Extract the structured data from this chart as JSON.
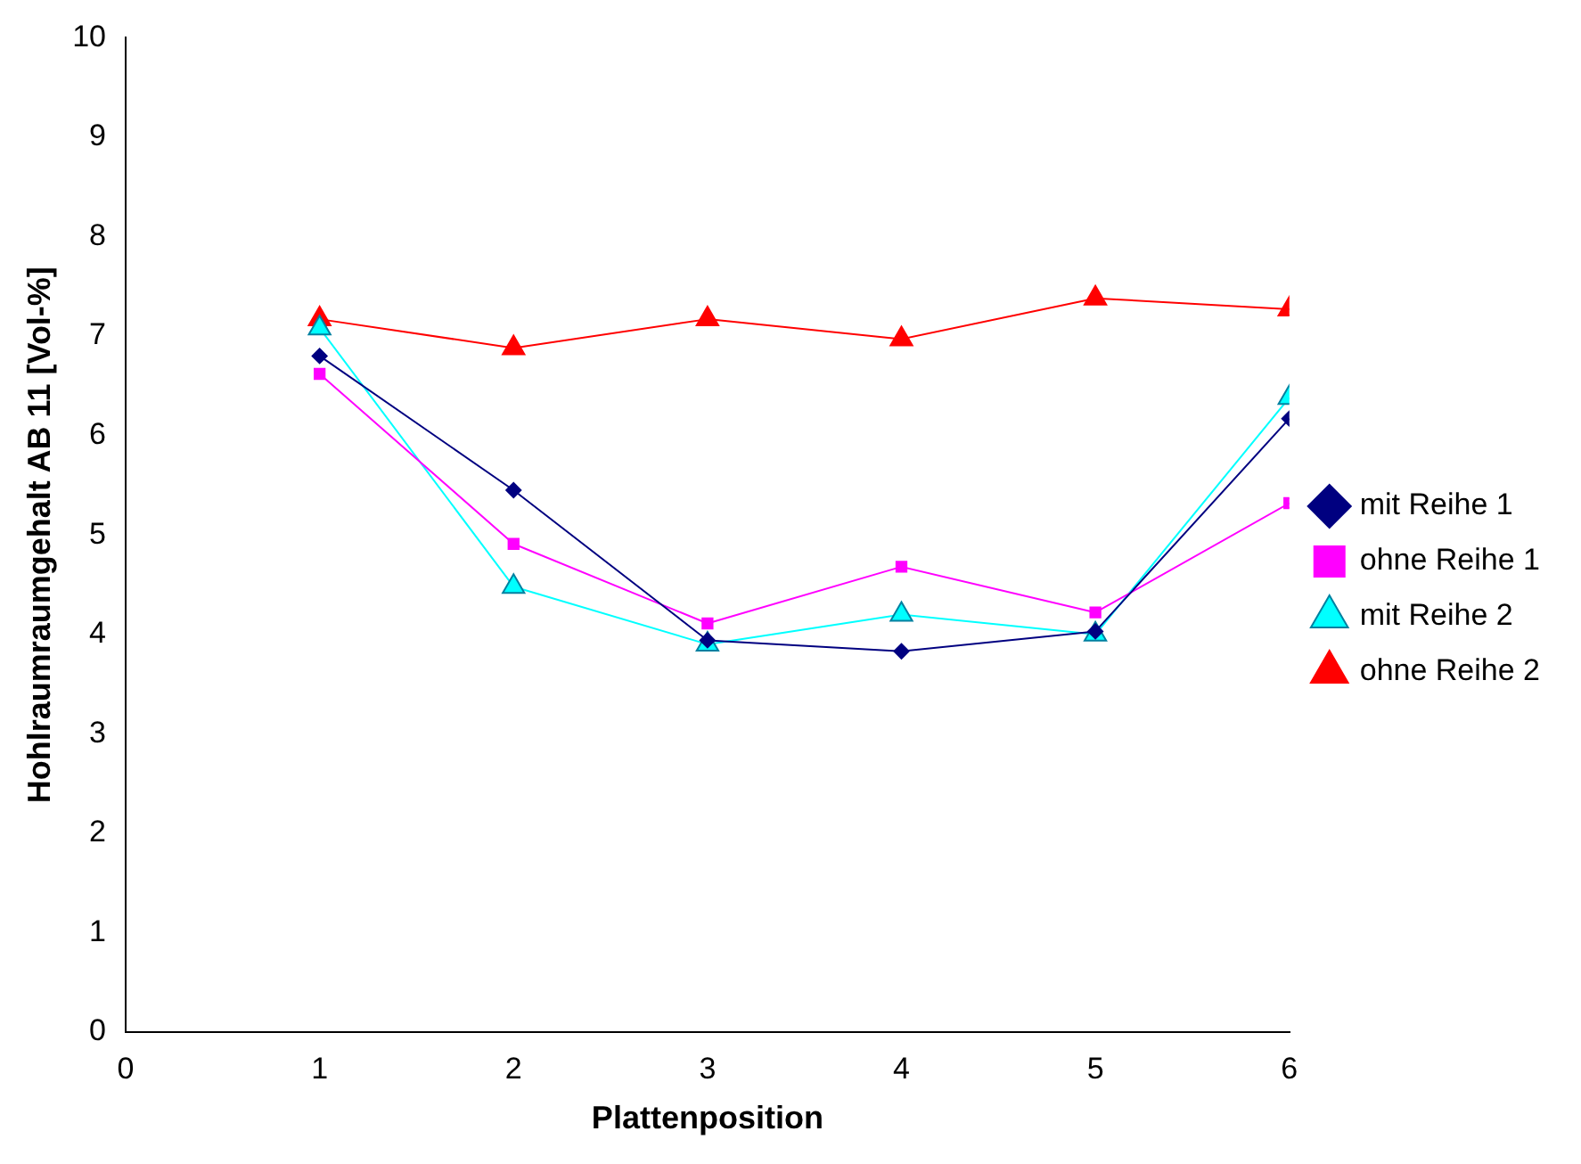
{
  "chart_data": {
    "type": "line",
    "xlabel": "Plattenposition",
    "ylabel": "Hohlraumraumgehalt AB 11 [Vol-%]",
    "x": [
      1,
      2,
      3,
      4,
      5,
      6
    ],
    "xlim": [
      0,
      6
    ],
    "xticks": [
      0,
      1,
      2,
      3,
      4,
      5,
      6
    ],
    "ylim": [
      0,
      10
    ],
    "yticks": [
      0,
      1,
      2,
      3,
      4,
      5,
      6,
      7,
      8,
      9,
      10
    ],
    "grid": false,
    "legend": "right",
    "line_style": "solid",
    "series": [
      {
        "name": "mit Reihe 1",
        "color": "#000080",
        "marker": "diamond",
        "values": [
          6.8,
          5.45,
          3.94,
          3.83,
          4.03,
          6.17
        ]
      },
      {
        "name": "ohne Reihe 1",
        "color": "#ff00ff",
        "marker": "square",
        "values": [
          6.62,
          4.91,
          4.11,
          4.68,
          4.22,
          5.32
        ]
      },
      {
        "name": "mit Reihe 2",
        "color": "#00ffff",
        "marker": "triangle",
        "values": [
          7.08,
          4.48,
          3.9,
          4.2,
          4.0,
          6.38
        ]
      },
      {
        "name": "ohne Reihe 2",
        "color": "#ff0000",
        "marker": "triangle",
        "values": [
          7.17,
          6.88,
          7.17,
          6.97,
          7.38,
          7.27
        ]
      }
    ]
  }
}
